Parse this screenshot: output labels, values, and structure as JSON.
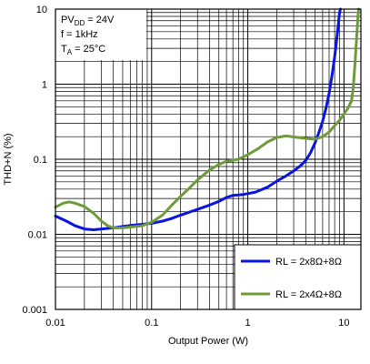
{
  "chart_data": {
    "type": "line",
    "title": "",
    "xlabel": "Output Power (W)",
    "ylabel": "THD+N (%)",
    "xscale": "log",
    "yscale": "log",
    "xlim": [
      0.01,
      15
    ],
    "ylim": [
      0.001,
      10
    ],
    "x_ticks": [
      {
        "value": 0.01,
        "label": "0.01"
      },
      {
        "value": 0.1,
        "label": "0.1"
      },
      {
        "value": 1,
        "label": "1"
      },
      {
        "value": 10,
        "label": "10"
      }
    ],
    "y_ticks": [
      {
        "value": 0.001,
        "label": "0.001"
      },
      {
        "value": 0.01,
        "label": "0.01"
      },
      {
        "value": 0.1,
        "label": "0.1"
      },
      {
        "value": 1,
        "label": "1"
      },
      {
        "value": 10,
        "label": "10"
      }
    ],
    "grid": true,
    "legend_position": "bottom-right",
    "conditions": {
      "line1_main": "PV",
      "line1_sub": "DD",
      "line1_rest": " = 24V",
      "line2": "f = 1kHz",
      "line3_main": "T",
      "line3_sub": "A",
      "line3_rest": " = 25°C"
    },
    "series": [
      {
        "name": "RL = 2x8Ω+8Ω",
        "color": "#0a14e0",
        "points": [
          [
            0.01,
            0.0175
          ],
          [
            0.013,
            0.015
          ],
          [
            0.016,
            0.013
          ],
          [
            0.02,
            0.0118
          ],
          [
            0.025,
            0.0115
          ],
          [
            0.03,
            0.0118
          ],
          [
            0.04,
            0.0122
          ],
          [
            0.05,
            0.0127
          ],
          [
            0.06,
            0.0131
          ],
          [
            0.08,
            0.0136
          ],
          [
            0.1,
            0.014
          ],
          [
            0.13,
            0.015
          ],
          [
            0.16,
            0.0162
          ],
          [
            0.2,
            0.018
          ],
          [
            0.3,
            0.0215
          ],
          [
            0.4,
            0.0245
          ],
          [
            0.5,
            0.0275
          ],
          [
            0.6,
            0.031
          ],
          [
            0.7,
            0.033
          ],
          [
            0.9,
            0.034
          ],
          [
            1.2,
            0.0365
          ],
          [
            1.6,
            0.0425
          ],
          [
            2.0,
            0.051
          ],
          [
            2.5,
            0.06
          ],
          [
            3.0,
            0.07
          ],
          [
            3.5,
            0.081
          ],
          [
            4.0,
            0.096
          ],
          [
            4.5,
            0.123
          ],
          [
            5.0,
            0.165
          ],
          [
            5.5,
            0.23
          ],
          [
            6.0,
            0.32
          ],
          [
            6.5,
            0.48
          ],
          [
            7.0,
            0.75
          ],
          [
            7.5,
            1.3
          ],
          [
            8.0,
            2.3
          ],
          [
            8.5,
            4.5
          ],
          [
            9.0,
            9.0
          ],
          [
            9.2,
            10.0
          ]
        ]
      },
      {
        "name": "RL = 2x4Ω+8Ω",
        "color": "#6e9a3c",
        "points": [
          [
            0.01,
            0.023
          ],
          [
            0.012,
            0.026
          ],
          [
            0.014,
            0.027
          ],
          [
            0.016,
            0.026
          ],
          [
            0.02,
            0.0235
          ],
          [
            0.025,
            0.019
          ],
          [
            0.03,
            0.015
          ],
          [
            0.035,
            0.013
          ],
          [
            0.04,
            0.0122
          ],
          [
            0.05,
            0.0122
          ],
          [
            0.06,
            0.0125
          ],
          [
            0.08,
            0.013
          ],
          [
            0.1,
            0.0145
          ],
          [
            0.13,
            0.018
          ],
          [
            0.16,
            0.024
          ],
          [
            0.2,
            0.032
          ],
          [
            0.25,
            0.042
          ],
          [
            0.3,
            0.053
          ],
          [
            0.4,
            0.072
          ],
          [
            0.5,
            0.085
          ],
          [
            0.6,
            0.094
          ],
          [
            0.8,
            0.1
          ],
          [
            1.0,
            0.115
          ],
          [
            1.3,
            0.14
          ],
          [
            1.6,
            0.17
          ],
          [
            2.0,
            0.195
          ],
          [
            2.5,
            0.205
          ],
          [
            3.0,
            0.198
          ],
          [
            4.0,
            0.19
          ],
          [
            5.0,
            0.185
          ],
          [
            6.0,
            0.2
          ],
          [
            7.0,
            0.23
          ],
          [
            8.0,
            0.28
          ],
          [
            9.0,
            0.33
          ],
          [
            10.0,
            0.4
          ],
          [
            11.0,
            0.48
          ],
          [
            12.0,
            0.6
          ],
          [
            12.5,
            0.9
          ],
          [
            13.0,
            1.8
          ],
          [
            13.5,
            4.0
          ],
          [
            14.0,
            8.0
          ],
          [
            14.2,
            10.0
          ]
        ]
      }
    ]
  }
}
